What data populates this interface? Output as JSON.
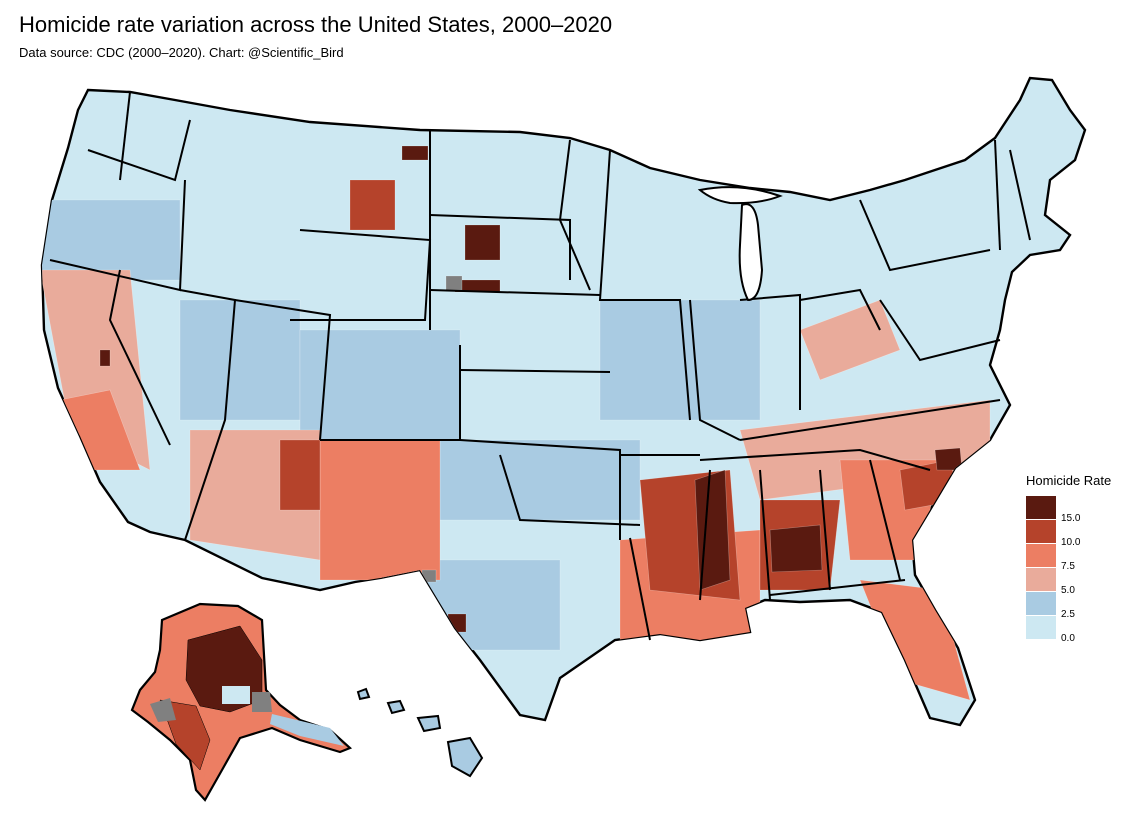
{
  "header": {
    "title": "Homicide rate variation across the United States, 2000–2020",
    "subtitle": "Data source: CDC (2000–2020). Chart: @Scientific_Bird"
  },
  "legend": {
    "title": "Homicide Rate",
    "ticks": [
      "15.0",
      "10.0",
      "7.5",
      "5.0",
      "2.5",
      "0.0"
    ],
    "colors": [
      "#5a1a10",
      "#b5432b",
      "#ec7e63",
      "#e9ab9b",
      "#a9cbe2",
      "#cde8f2"
    ]
  },
  "map": {
    "no_data_color": "#808080",
    "outline_color": "#000000",
    "region_names": [
      "Contiguous United States",
      "Alaska",
      "Hawaii"
    ]
  }
}
